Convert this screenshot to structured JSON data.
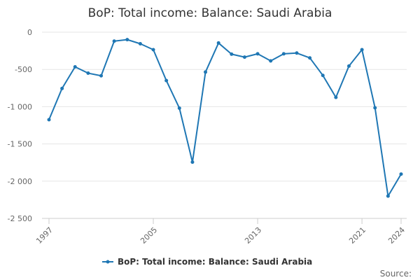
{
  "chart_data": {
    "type": "line",
    "title": "BoP: Total income: Balance: Saudi Arabia",
    "xlabel": "",
    "ylabel": "",
    "x": [
      1997,
      1998,
      1999,
      2000,
      2001,
      2002,
      2003,
      2004,
      2005,
      2006,
      2007,
      2008,
      2009,
      2010,
      2011,
      2012,
      2013,
      2014,
      2015,
      2016,
      2017,
      2018,
      2019,
      2020,
      2021,
      2022,
      2023,
      2024
    ],
    "series": [
      {
        "name": "BoP: Total income: Balance: Saudi Arabia",
        "color": "#1f77b4",
        "values": [
          -1175,
          -755,
          -465,
          -550,
          -585,
          -120,
          -100,
          -155,
          -235,
          -650,
          -1020,
          -1745,
          -535,
          -145,
          -295,
          -335,
          -290,
          -385,
          -290,
          -280,
          -345,
          -580,
          -875,
          -455,
          -235,
          -1015,
          -2200,
          -1905
        ]
      }
    ],
    "xlim": [
      1997,
      2024
    ],
    "ylim": [
      -2500,
      0
    ],
    "x_ticks": [
      "1997",
      "2005",
      "2013",
      "2021",
      "2024"
    ],
    "y_ticks": [
      "0",
      "-500",
      "-1 000",
      "-1 500",
      "-2 000",
      "-2 500"
    ],
    "grid": true,
    "legend_position": "bottom",
    "legend_label": "BoP: Total income: Balance: Saudi Arabia",
    "source_label": "Source:"
  }
}
